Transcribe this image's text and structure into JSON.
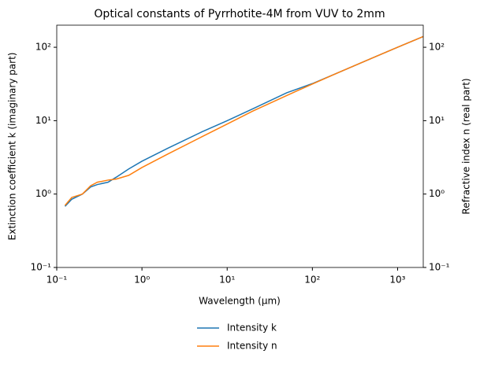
{
  "chart_data": {
    "type": "line",
    "title": "Optical constants of Pyrrhotite-4M from VUV to 2mm",
    "x_label": "Wavelength (μm)",
    "y_label": "Extinction coefficient k (imaginary part)",
    "y2_label": "Refractive index n (real part)",
    "x_scale": "log",
    "y_scale": "log",
    "xlim": [
      0.1,
      2000
    ],
    "xticks": [
      {
        "value": 0.1,
        "label": "10⁻¹"
      },
      {
        "value": 1,
        "label": "10⁰"
      },
      {
        "value": 10,
        "label": "10¹"
      },
      {
        "value": 100,
        "label": "10²"
      },
      {
        "value": 1000,
        "label": "10³"
      }
    ],
    "ylim": [
      0.1,
      200
    ],
    "yticks": [
      {
        "value": 0.1,
        "label": "10⁻¹"
      },
      {
        "value": 1,
        "label": "10⁰"
      },
      {
        "value": 10,
        "label": "10¹"
      },
      {
        "value": 100,
        "label": "10²"
      }
    ],
    "y2lim": [
      0.1,
      200
    ],
    "y2ticks": [
      {
        "value": 0.1,
        "label": "10⁻¹"
      },
      {
        "value": 1,
        "label": "10⁰"
      },
      {
        "value": 10,
        "label": "10¹"
      },
      {
        "value": 100,
        "label": "10²"
      }
    ],
    "legend": "below",
    "x": [
      0.125,
      0.15,
      0.2,
      0.25,
      0.3,
      0.4,
      0.5,
      0.7,
      1,
      2,
      5,
      10,
      20,
      50,
      100,
      200,
      500,
      1000,
      2000
    ],
    "series": [
      {
        "name": "Intensity k",
        "color": "#1f77b4",
        "values": [
          0.68,
          0.85,
          1.0,
          1.25,
          1.35,
          1.45,
          1.7,
          2.2,
          2.8,
          4.2,
          7,
          10,
          14.5,
          24,
          32,
          45,
          71,
          100,
          140
        ]
      },
      {
        "name": "Intensity n",
        "color": "#ff7f0e",
        "axis": "y2",
        "values": [
          0.7,
          0.9,
          1.0,
          1.3,
          1.45,
          1.55,
          1.6,
          1.8,
          2.3,
          3.5,
          6,
          9,
          13.5,
          22,
          31.6,
          45,
          71,
          100,
          140
        ]
      }
    ]
  }
}
